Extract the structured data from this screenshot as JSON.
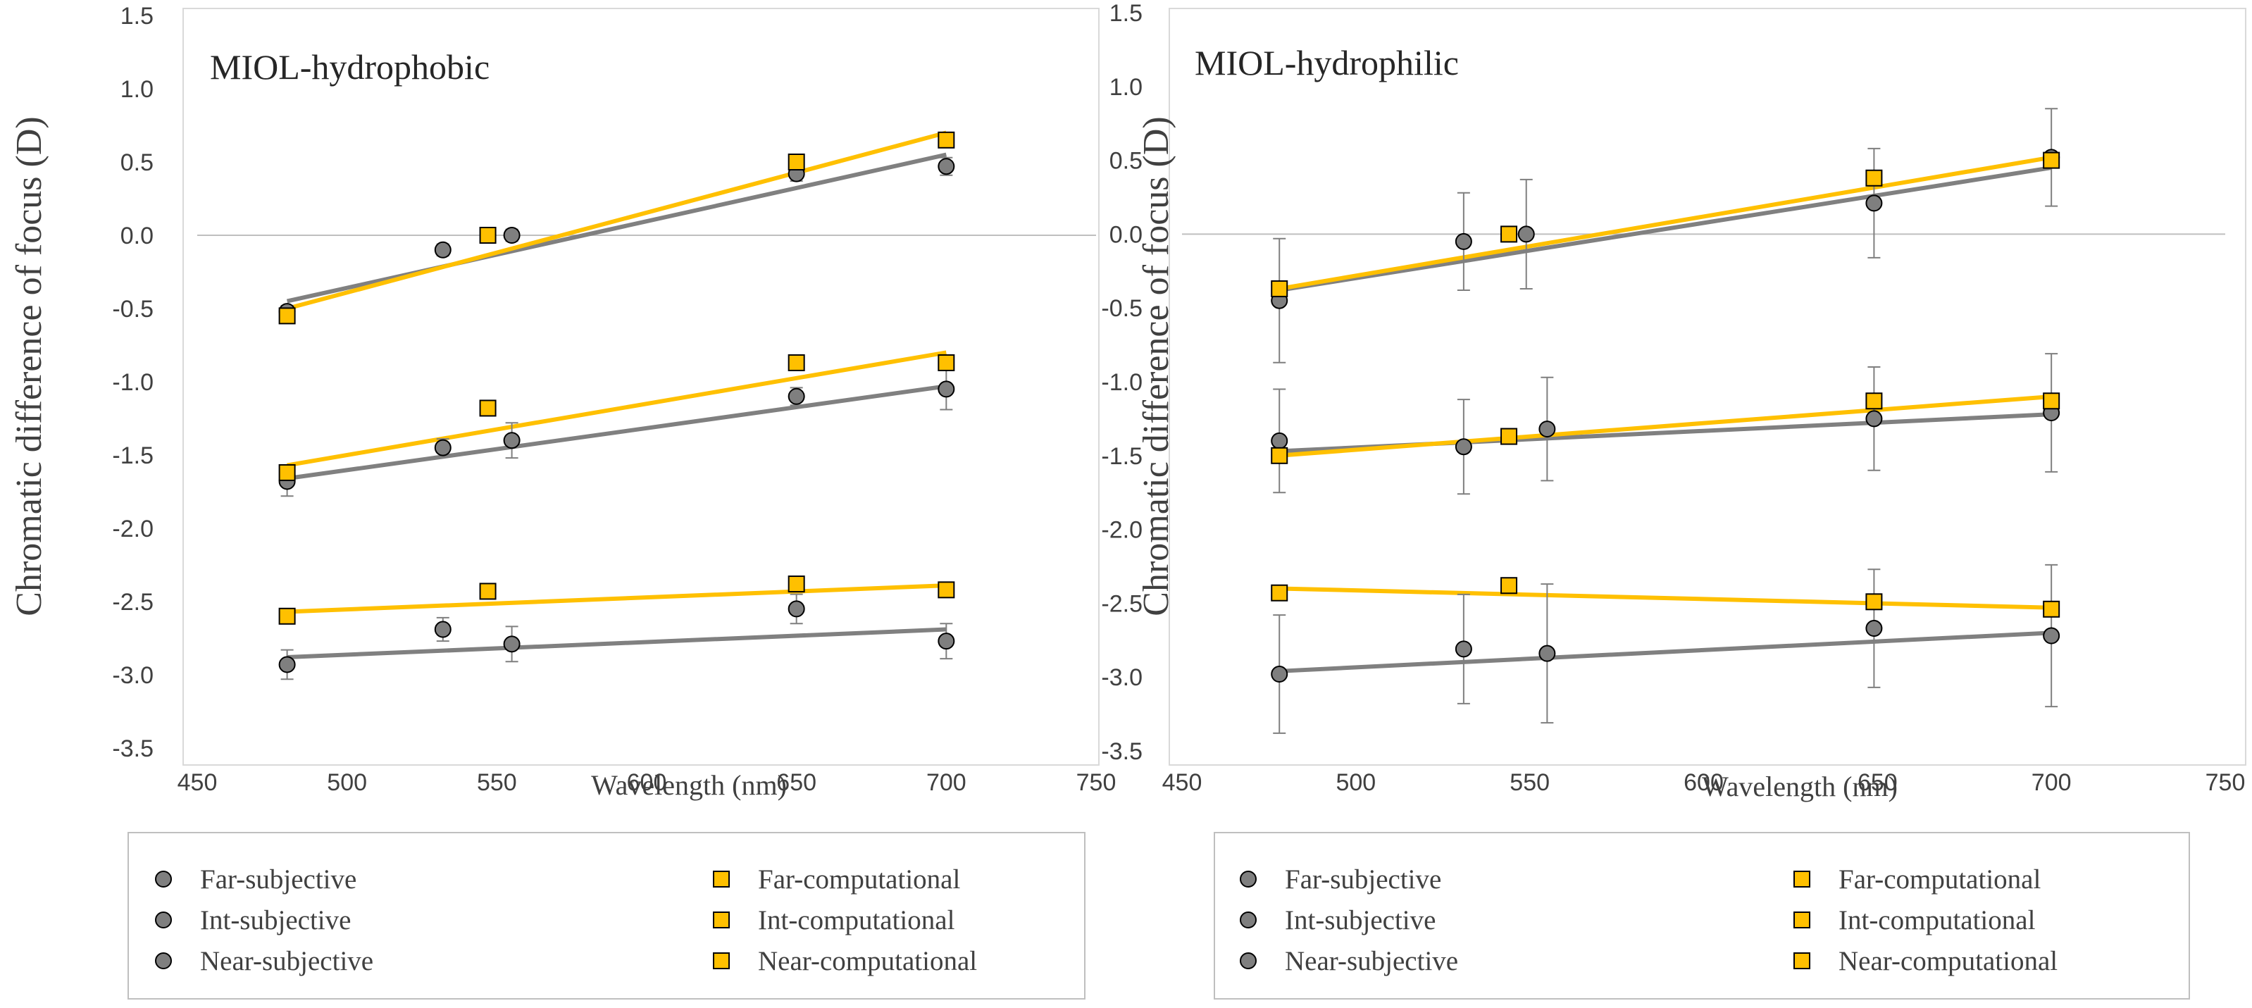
{
  "chart_data": [
    {
      "type": "scatter",
      "title": "MIOL-hydrophobic",
      "xlabel": "Wavelength (nm)",
      "ylabel": "Chromatic difference of focus (D)",
      "xlim": [
        450,
        750
      ],
      "ylim": [
        -3.5,
        1.5
      ],
      "xticks": [
        450,
        500,
        550,
        600,
        650,
        700,
        750
      ],
      "yticks": [
        "1.5",
        "1.0",
        "0.5",
        "0.0",
        "-0.5",
        "-1.0",
        "-1.5",
        "-2.0",
        "-2.5",
        "-3.0",
        "-3.5"
      ],
      "series": [
        {
          "name": "Far-subjective",
          "marker": "circle",
          "x": [
            480,
            532,
            555,
            650,
            700
          ],
          "y": [
            -0.52,
            -0.1,
            0.0,
            0.42,
            0.47
          ],
          "err": [
            0.04,
            0.04,
            0.04,
            0.05,
            0.06
          ],
          "trend": [
            [
              480,
              -0.45
            ],
            [
              700,
              0.55
            ]
          ]
        },
        {
          "name": "Int-subjective",
          "marker": "circle",
          "x": [
            480,
            532,
            555,
            650,
            700
          ],
          "y": [
            -1.68,
            -1.45,
            -1.4,
            -1.1,
            -1.05
          ],
          "err": [
            0.1,
            0.06,
            0.12,
            0.06,
            0.14
          ],
          "trend": [
            [
              480,
              -1.66
            ],
            [
              700,
              -1.03
            ]
          ]
        },
        {
          "name": "Near-subjective",
          "marker": "circle",
          "x": [
            480,
            532,
            555,
            650,
            700
          ],
          "y": [
            -2.93,
            -2.69,
            -2.79,
            -2.55,
            -2.77
          ],
          "err": [
            0.1,
            0.08,
            0.12,
            0.1,
            0.12
          ],
          "trend": [
            [
              480,
              -2.88
            ],
            [
              700,
              -2.69
            ]
          ]
        },
        {
          "name": "Far-computational",
          "marker": "square",
          "x": [
            480,
            547,
            650,
            700
          ],
          "y": [
            -0.55,
            0.0,
            0.5,
            0.65
          ],
          "trend": [
            [
              480,
              -0.5
            ],
            [
              700,
              0.7
            ]
          ]
        },
        {
          "name": "Int-computational",
          "marker": "square",
          "x": [
            480,
            547,
            650,
            700
          ],
          "y": [
            -1.62,
            -1.18,
            -0.87,
            -0.87
          ],
          "trend": [
            [
              480,
              -1.57
            ],
            [
              700,
              -0.8
            ]
          ]
        },
        {
          "name": "Near-computational",
          "marker": "square",
          "x": [
            480,
            547,
            650,
            700
          ],
          "y": [
            -2.6,
            -2.43,
            -2.38,
            -2.42
          ],
          "trend": [
            [
              480,
              -2.57
            ],
            [
              700,
              -2.39
            ]
          ]
        }
      ]
    },
    {
      "type": "scatter",
      "title": "MIOL-hydrophilic",
      "xlabel": "Wavelength (nm)",
      "ylabel": "Chromatic difference of focus (D)",
      "xlim": [
        450,
        750
      ],
      "ylim": [
        -3.5,
        1.5
      ],
      "xticks": [
        450,
        500,
        550,
        600,
        650,
        700,
        750
      ],
      "yticks": [
        "1.5",
        "1.0",
        "0.5",
        "0.0",
        "-0.5",
        "-1.0",
        "-1.5",
        "-2.0",
        "-2.5",
        "-3.0",
        "-3.5"
      ],
      "series": [
        {
          "name": "Far-subjective",
          "marker": "circle",
          "x": [
            478,
            531,
            549,
            649,
            700
          ],
          "y": [
            -0.45,
            -0.05,
            0.0,
            0.21,
            0.52
          ],
          "err": [
            0.42,
            0.33,
            0.37,
            0.37,
            0.33
          ],
          "trend": [
            [
              478,
              -0.38
            ],
            [
              700,
              0.45
            ]
          ]
        },
        {
          "name": "Int-subjective",
          "marker": "circle",
          "x": [
            478,
            531,
            555,
            649,
            700
          ],
          "y": [
            -1.4,
            -1.44,
            -1.32,
            -1.25,
            -1.21
          ],
          "err": [
            0.35,
            0.32,
            0.35,
            0.35,
            0.4
          ],
          "trend": [
            [
              478,
              -1.47
            ],
            [
              700,
              -1.22
            ]
          ]
        },
        {
          "name": "Near-subjective",
          "marker": "circle",
          "x": [
            478,
            531,
            555,
            649,
            700
          ],
          "y": [
            -2.98,
            -2.81,
            -2.84,
            -2.67,
            -2.72
          ],
          "err": [
            0.4,
            0.37,
            0.47,
            0.4,
            0.48
          ],
          "trend": [
            [
              478,
              -2.96
            ],
            [
              700,
              -2.7
            ]
          ]
        },
        {
          "name": "Far-computational",
          "marker": "square",
          "x": [
            478,
            544,
            649,
            700
          ],
          "y": [
            -0.37,
            0.0,
            0.38,
            0.5
          ],
          "trend": [
            [
              478,
              -0.37
            ],
            [
              700,
              0.52
            ]
          ]
        },
        {
          "name": "Int-computational",
          "marker": "square",
          "x": [
            478,
            544,
            649,
            700
          ],
          "y": [
            -1.5,
            -1.37,
            -1.13,
            -1.13
          ],
          "trend": [
            [
              478,
              -1.5
            ],
            [
              700,
              -1.1
            ]
          ]
        },
        {
          "name": "Near-computational",
          "marker": "square",
          "x": [
            478,
            544,
            649,
            700
          ],
          "y": [
            -2.43,
            -2.38,
            -2.49,
            -2.54
          ],
          "trend": [
            [
              478,
              -2.4
            ],
            [
              700,
              -2.53
            ]
          ]
        }
      ]
    }
  ],
  "legend": [
    [
      "Far-subjective",
      "Far-computational"
    ],
    [
      "Int-subjective",
      "Int-computational"
    ],
    [
      "Near-subjective",
      "Near-computational"
    ]
  ],
  "colors": {
    "subjective_fill": "#7f7f7f",
    "subjective_line": "#808080",
    "computational_fill": "#ffc000",
    "computational_line": "#ffc000",
    "marker_edge": "#000000",
    "error_bar": "#7f7f7f",
    "axis": "#bfbfbf"
  }
}
